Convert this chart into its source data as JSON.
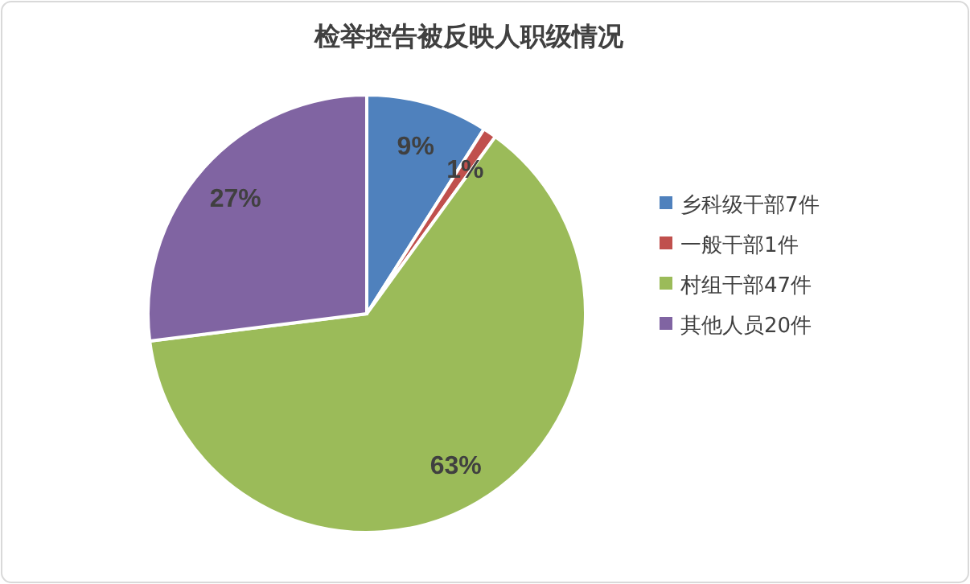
{
  "chart_data": {
    "type": "pie",
    "title": "检举控告被反映人职级情况",
    "categories": [
      "乡科级干部7件",
      "一般干部1件",
      "村组干部47件",
      "其他人员20件"
    ],
    "values": [
      9,
      1,
      63,
      27
    ],
    "value_labels": [
      "9%",
      "1%",
      "63%",
      "27%"
    ],
    "colors": [
      "#4f81bd",
      "#c0504d",
      "#9bbb59",
      "#8064a2"
    ],
    "legend": "right"
  }
}
